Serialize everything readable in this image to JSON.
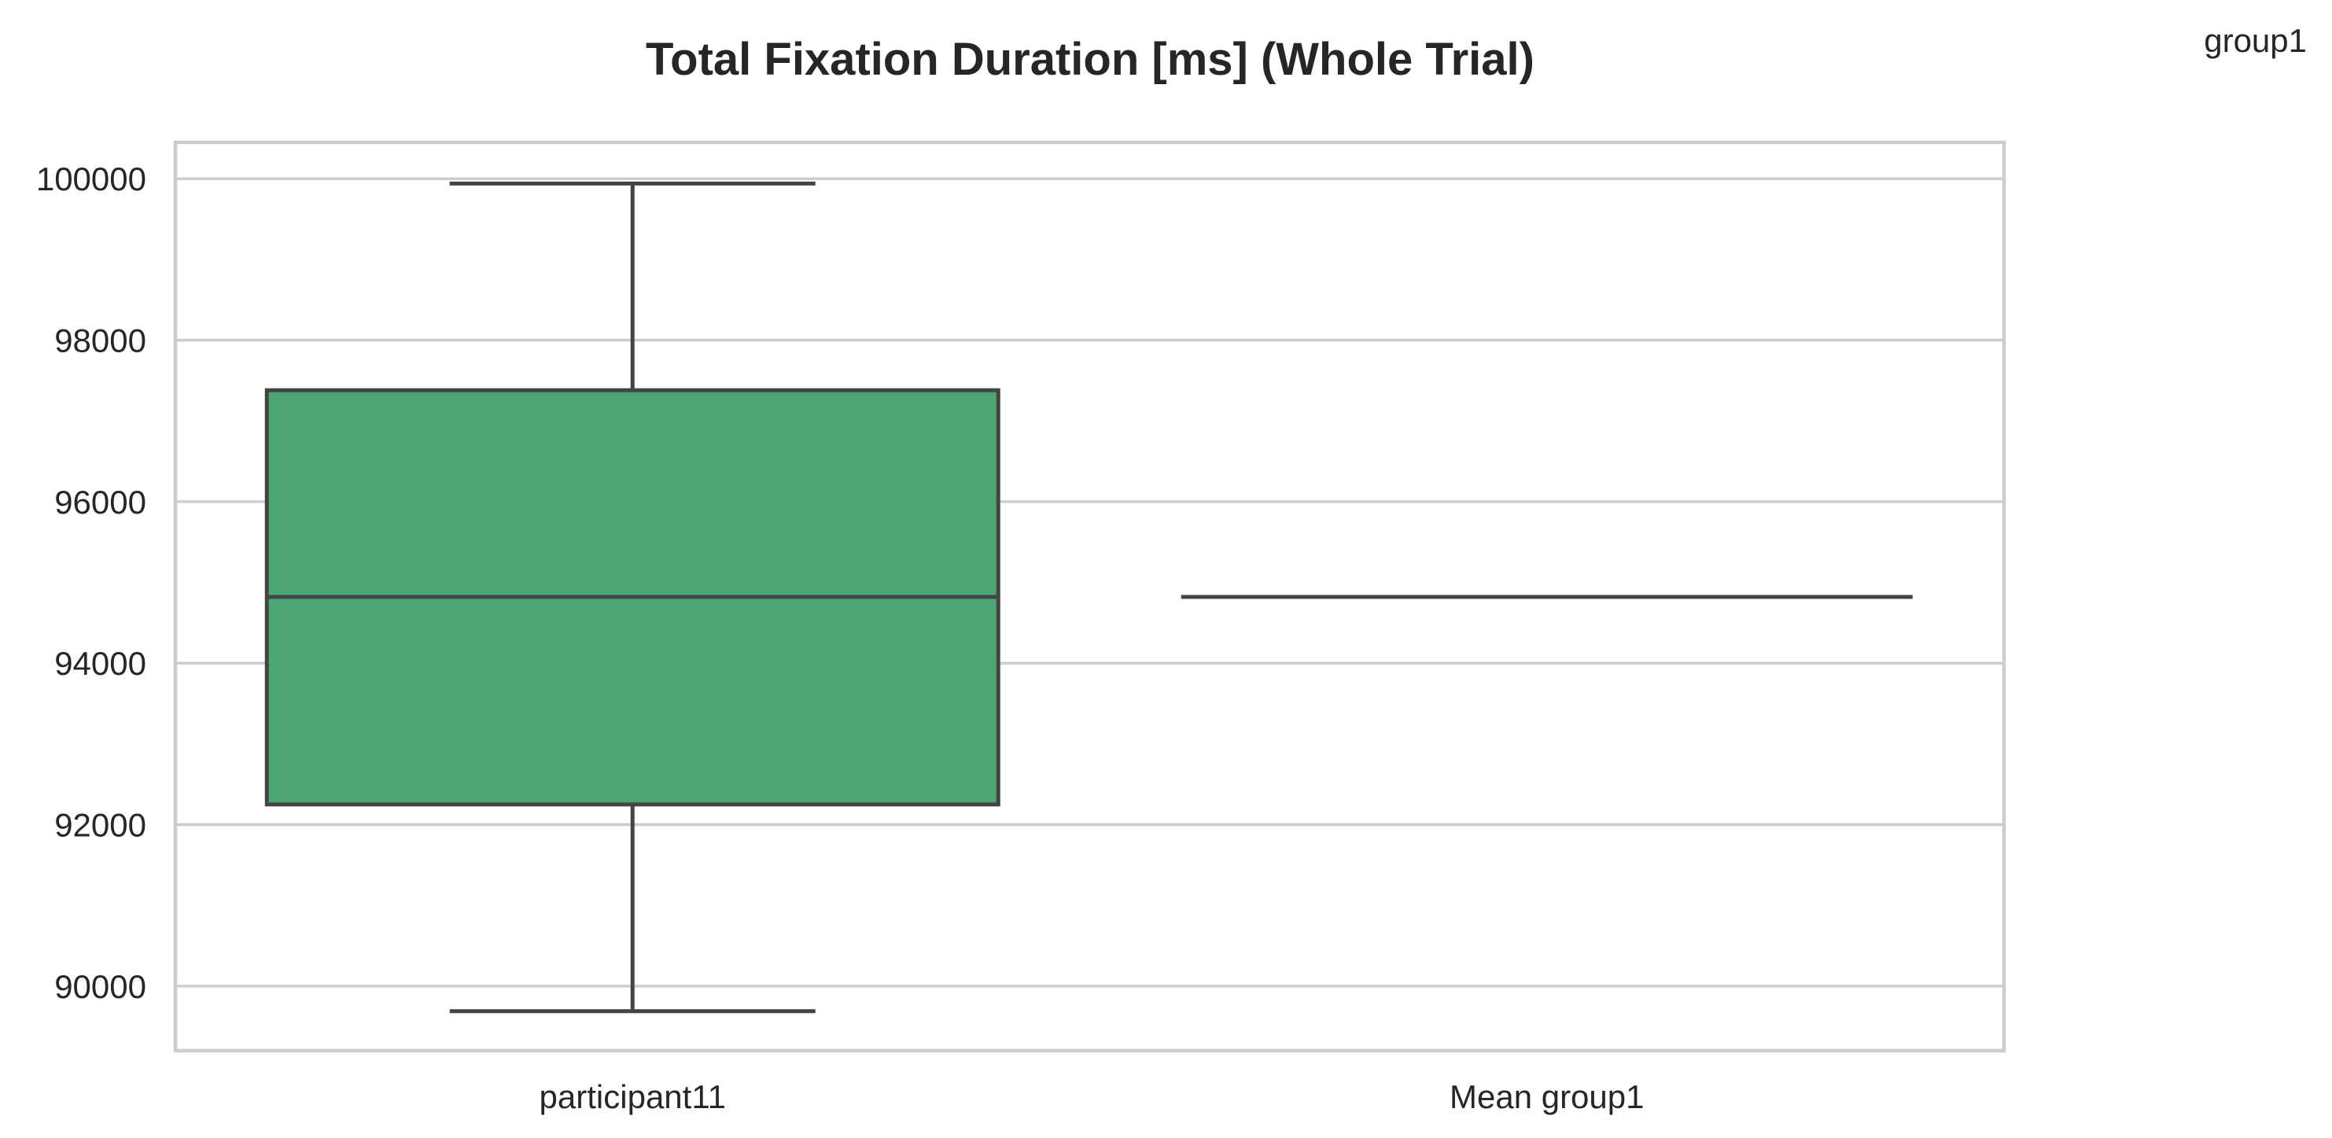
{
  "chart_data": {
    "type": "box",
    "title": "Total Fixation Duration [ms] (Whole Trial)",
    "legend_title": "group1",
    "legend_position": "top-right",
    "xlabel": "",
    "ylabel": "",
    "ylim": [
      89200,
      100450
    ],
    "yticks": [
      90000,
      92000,
      94000,
      96000,
      98000,
      100000
    ],
    "grid": true,
    "fill_color": "#4ca673",
    "line_color": "#444444",
    "categories": [
      "participant11",
      "Mean group1"
    ],
    "series": [
      {
        "name": "participant11",
        "whisker_low": 89690,
        "q1": 92250,
        "median": 94820,
        "q3": 97380,
        "whisker_high": 99940
      },
      {
        "name": "Mean group1",
        "whisker_low": 94820,
        "q1": 94820,
        "median": 94820,
        "q3": 94820,
        "whisker_high": 94820
      }
    ]
  }
}
